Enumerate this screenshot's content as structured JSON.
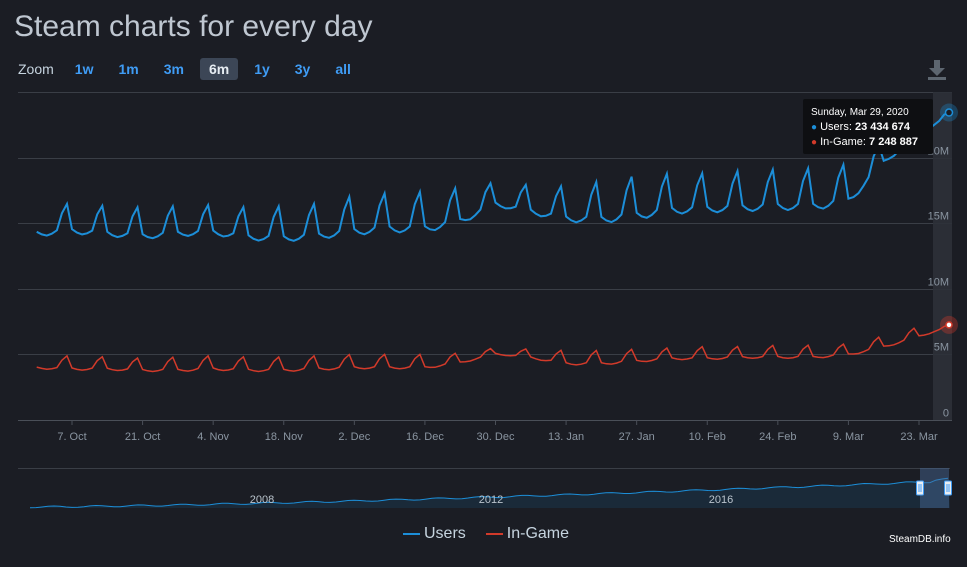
{
  "page": {
    "title": "Steam charts for every day"
  },
  "zoom": {
    "label": "Zoom",
    "options": [
      "1w",
      "1m",
      "3m",
      "6m",
      "1y",
      "3y",
      "all"
    ],
    "active": "6m"
  },
  "icons": {
    "download": "download-icon"
  },
  "tooltip": {
    "date": "Sunday, Mar 29, 2020",
    "users_label": "Users:",
    "users_value": "23 434 674",
    "ingame_label": "In-Game:",
    "ingame_value": "7 248 887"
  },
  "legend": {
    "users": "Users",
    "ingame": "In-Game"
  },
  "credit": "SteamDB.info",
  "colors": {
    "users": "#1c8ed8",
    "ingame": "#d23a2a",
    "background": "#1b1d24",
    "accent": "#3f9cf5"
  },
  "chart_data": {
    "type": "line",
    "x_tick_labels": [
      "7. Oct",
      "21. Oct",
      "4. Nov",
      "18. Nov",
      "2. Dec",
      "16. Dec",
      "30. Dec",
      "13. Jan",
      "27. Jan",
      "10. Feb",
      "24. Feb",
      "9. Mar",
      "23. Mar"
    ],
    "y_tick_labels": [
      "0",
      "5M",
      "10M",
      "15M",
      "20M"
    ],
    "ylim": [
      0,
      25000000
    ],
    "x_range": [
      "2019-09-30",
      "2020-03-29"
    ],
    "grid": true,
    "series": [
      {
        "name": "Users",
        "color": "#1c8ed8",
        "weekly_points": [
          {
            "date": "2019-09-30",
            "low": 14000000,
            "peak": 16300000
          },
          {
            "date": "2019-10-07",
            "low": 14200000,
            "peak": 16500000
          },
          {
            "date": "2019-10-14",
            "low": 14000000,
            "peak": 16300000
          },
          {
            "date": "2019-10-21",
            "low": 13800000,
            "peak": 16200000
          },
          {
            "date": "2019-10-28",
            "low": 14000000,
            "peak": 16300000
          },
          {
            "date": "2019-11-04",
            "low": 14100000,
            "peak": 16400000
          },
          {
            "date": "2019-11-11",
            "low": 13700000,
            "peak": 16200000
          },
          {
            "date": "2019-11-18",
            "low": 13600000,
            "peak": 16300000
          },
          {
            "date": "2019-11-25",
            "low": 13800000,
            "peak": 16500000
          },
          {
            "date": "2019-12-02",
            "low": 14100000,
            "peak": 17100000
          },
          {
            "date": "2019-12-09",
            "low": 14300000,
            "peak": 17300000
          },
          {
            "date": "2019-12-16",
            "low": 14300000,
            "peak": 17400000
          },
          {
            "date": "2019-12-23",
            "low": 14900000,
            "peak": 17700000
          },
          {
            "date": "2019-12-30",
            "low": 16300000,
            "peak": 18100000
          },
          {
            "date": "2020-01-06",
            "low": 15700000,
            "peak": 17900000
          },
          {
            "date": "2020-01-13",
            "low": 15100000,
            "peak": 17800000
          },
          {
            "date": "2020-01-20",
            "low": 15000000,
            "peak": 18200000
          },
          {
            "date": "2020-01-27",
            "low": 15300000,
            "peak": 18600000
          },
          {
            "date": "2020-02-03",
            "low": 15700000,
            "peak": 18800000
          },
          {
            "date": "2020-02-10",
            "low": 15800000,
            "peak": 18800000
          },
          {
            "date": "2020-02-17",
            "low": 15900000,
            "peak": 19000000
          },
          {
            "date": "2020-02-24",
            "low": 16000000,
            "peak": 19100000
          },
          {
            "date": "2020-03-02",
            "low": 16000000,
            "peak": 19200000
          },
          {
            "date": "2020-03-09",
            "low": 16400000,
            "peak": 19500000
          },
          {
            "date": "2020-03-16",
            "low": 19500000,
            "peak": 21200000
          },
          {
            "date": "2020-03-23",
            "low": 21700000,
            "peak": 23400000
          },
          {
            "date": "2020-03-29",
            "low": 23434674,
            "peak": 23434674
          }
        ]
      },
      {
        "name": "In-Game",
        "color": "#d23a2a",
        "weekly_points": [
          {
            "date": "2019-09-30",
            "low": 3900000,
            "peak": 4800000
          },
          {
            "date": "2019-10-07",
            "low": 3800000,
            "peak": 4900000
          },
          {
            "date": "2019-10-14",
            "low": 3800000,
            "peak": 4800000
          },
          {
            "date": "2019-10-21",
            "low": 3700000,
            "peak": 4700000
          },
          {
            "date": "2019-10-28",
            "low": 3700000,
            "peak": 4800000
          },
          {
            "date": "2019-11-04",
            "low": 3800000,
            "peak": 4900000
          },
          {
            "date": "2019-11-11",
            "low": 3700000,
            "peak": 4800000
          },
          {
            "date": "2019-11-18",
            "low": 3700000,
            "peak": 4800000
          },
          {
            "date": "2019-11-25",
            "low": 3800000,
            "peak": 4900000
          },
          {
            "date": "2019-12-02",
            "low": 3900000,
            "peak": 5000000
          },
          {
            "date": "2019-12-09",
            "low": 3900000,
            "peak": 5000000
          },
          {
            "date": "2019-12-16",
            "low": 3900000,
            "peak": 5000000
          },
          {
            "date": "2019-12-23",
            "low": 4300000,
            "peak": 5100000
          },
          {
            "date": "2019-12-30",
            "low": 5000000,
            "peak": 5500000
          },
          {
            "date": "2020-01-06",
            "low": 4700000,
            "peak": 5400000
          },
          {
            "date": "2020-01-13",
            "low": 4200000,
            "peak": 5300000
          },
          {
            "date": "2020-01-20",
            "low": 4200000,
            "peak": 5300000
          },
          {
            "date": "2020-01-27",
            "low": 4400000,
            "peak": 5400000
          },
          {
            "date": "2020-02-03",
            "low": 4600000,
            "peak": 5500000
          },
          {
            "date": "2020-02-10",
            "low": 4600000,
            "peak": 5600000
          },
          {
            "date": "2020-02-17",
            "low": 4700000,
            "peak": 5600000
          },
          {
            "date": "2020-02-24",
            "low": 4700000,
            "peak": 5700000
          },
          {
            "date": "2020-03-02",
            "low": 4700000,
            "peak": 5700000
          },
          {
            "date": "2020-03-09",
            "low": 4900000,
            "peak": 5800000
          },
          {
            "date": "2020-03-16",
            "low": 5500000,
            "peak": 6400000
          },
          {
            "date": "2020-03-23",
            "low": 6300000,
            "peak": 7100000
          },
          {
            "date": "2020-03-29",
            "low": 7248887,
            "peak": 7248887
          }
        ]
      }
    ],
    "navigator": {
      "labels": [
        "2008",
        "2012",
        "2016"
      ]
    }
  }
}
